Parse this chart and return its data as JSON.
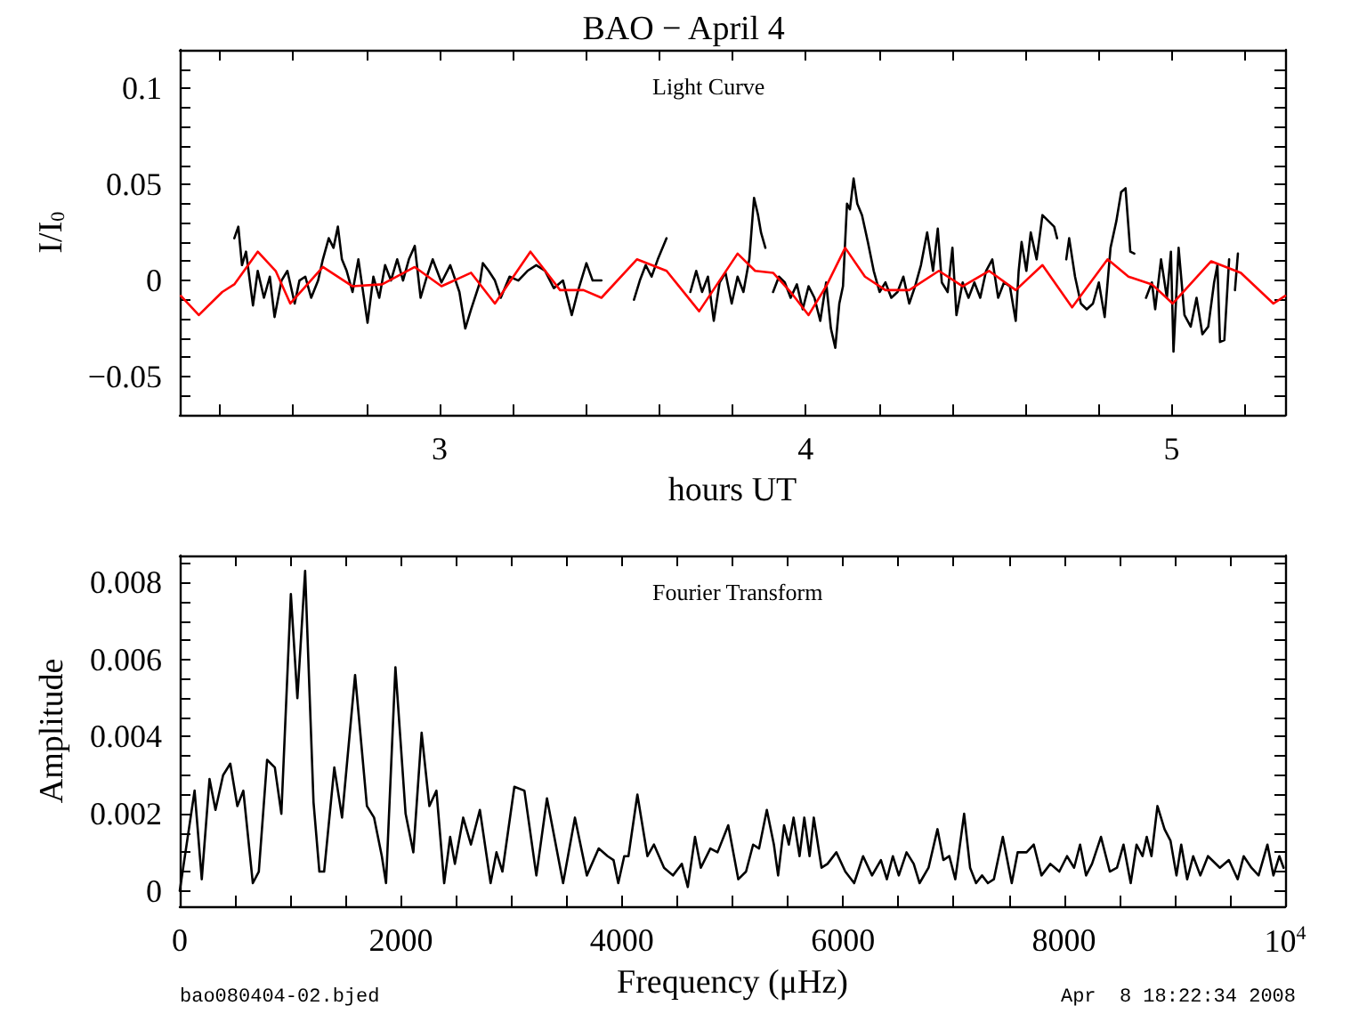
{
  "chart_data": [
    {
      "type": "line",
      "title": "BAO − April 4",
      "xlabel": "hours UT",
      "ylabel": "I/I$_{0}$",
      "annotations": [
        "Light Curve"
      ],
      "marker": "none",
      "line_style": "solid",
      "grid": false,
      "xlim": [
        2.29,
        5.31
      ],
      "ylim": [
        -0.07,
        0.12
      ],
      "xticks": [
        {
          "value": 2.4,
          "label": null
        },
        {
          "value": 2.6,
          "label": null
        },
        {
          "value": 2.8,
          "label": null
        },
        3,
        {
          "value": 3.2,
          "label": null
        },
        {
          "value": 3.4,
          "label": null
        },
        {
          "value": 3.6,
          "label": null
        },
        {
          "value": 3.8,
          "label": null
        },
        4,
        {
          "value": 4.2,
          "label": null
        },
        {
          "value": 4.4,
          "label": null
        },
        {
          "value": 4.6,
          "label": null
        },
        {
          "value": 4.8,
          "label": null
        },
        5,
        {
          "value": 5.2,
          "label": null
        }
      ],
      "yticks": [
        {
          "value": -0.06,
          "label": null
        },
        {
          "value": -0.05,
          "label": "−0.05"
        },
        {
          "value": -0.04,
          "label": null
        },
        {
          "value": -0.03,
          "label": null
        },
        {
          "value": -0.02,
          "label": null
        },
        {
          "value": -0.01,
          "label": null
        },
        0,
        {
          "value": 0.01,
          "label": null
        },
        {
          "value": 0.02,
          "label": null
        },
        {
          "value": 0.03,
          "label": null
        },
        {
          "value": 0.04,
          "label": null
        },
        0.05,
        {
          "value": 0.06,
          "label": null
        },
        {
          "value": 0.07,
          "label": null
        },
        {
          "value": 0.08,
          "label": null
        },
        {
          "value": 0.09,
          "label": null
        },
        0.1,
        {
          "value": 0.11,
          "label": null
        }
      ],
      "series": [
        {
          "color": "#000000",
          "x": [
            2.439,
            2.45,
            2.46,
            2.471,
            2.49,
            2.503,
            2.52,
            2.536,
            2.549,
            2.568,
            2.584,
            2.604,
            2.617,
            2.633,
            2.649,
            2.668,
            2.681,
            2.697,
            2.71,
            2.722,
            2.733,
            2.746,
            2.762,
            2.778,
            2.803,
            2.819,
            2.835,
            2.851,
            2.867,
            2.884,
            2.9,
            2.916,
            2.932,
            2.948,
            2.965,
            2.981,
            3.005,
            3.029,
            3.054,
            3.07,
            3.086,
            3.11,
            3.118,
            3.134,
            3.151,
            3.167,
            3.191,
            3.215,
            3.24,
            3.264,
            3.288,
            3.312,
            3.337,
            3.361,
            3.377,
            3.401,
            3.418,
            3.442,
            3.49,
            3.531,
            3.547,
            3.563,
            3.579,
            3.596,
            3.62,
            3.65,
            3.685,
            3.701,
            3.717,
            3.733,
            3.749,
            3.765,
            3.781,
            3.798,
            3.814,
            3.83,
            3.846,
            3.859,
            3.87,
            3.878,
            3.89,
            3.9,
            3.911,
            3.927,
            3.943,
            3.959,
            3.976,
            3.992,
            4.008,
            4.024,
            4.04,
            4.056,
            4.069,
            4.081,
            4.092,
            4.102,
            4.113,
            4.121,
            4.131,
            4.141,
            4.154,
            4.17,
            4.186,
            4.202,
            4.218,
            4.234,
            4.251,
            4.267,
            4.283,
            4.299,
            4.315,
            4.332,
            4.348,
            4.361,
            4.372,
            4.388,
            4.401,
            4.412,
            4.429,
            4.445,
            4.461,
            4.477,
            4.493,
            4.51,
            4.526,
            4.542,
            4.558,
            4.574,
            4.582,
            4.59,
            4.603,
            4.615,
            4.631,
            4.647,
            4.663,
            4.679,
            4.687,
            4.7,
            4.712,
            4.72,
            4.736,
            4.752,
            4.768,
            4.785,
            4.801,
            4.817,
            4.833,
            4.849,
            4.862,
            4.874,
            4.887,
            4.898,
            4.915,
            4.93,
            4.946,
            4.955,
            4.971,
            4.987,
            4.998,
            5.005,
            5.019,
            5.035,
            5.052,
            5.068,
            5.084,
            5.1,
            5.116,
            5.125,
            5.132,
            5.144,
            5.157,
            5.165,
            5.173,
            5.181
          ],
          "values": [
            0.022,
            0.028,
            0.008,
            0.015,
            -0.013,
            0.005,
            -0.009,
            0.002,
            -0.019,
            0.0,
            0.005,
            -0.012,
            0.0,
            0.002,
            -0.009,
            0.0,
            0.011,
            0.022,
            0.017,
            0.028,
            0.011,
            0.005,
            -0.006,
            0.011,
            -0.022,
            0.002,
            -0.009,
            0.008,
            0.0,
            0.011,
            0.0,
            0.011,
            0.018,
            -0.009,
            0.002,
            0.011,
            -0.001,
            0.008,
            -0.006,
            -0.025,
            -0.015,
            -0.001,
            0.009,
            0.005,
            0.0,
            -0.009,
            0.002,
            0.0,
            0.005,
            0.008,
            0.005,
            -0.004,
            0.0,
            -0.018,
            -0.006,
            0.009,
            0.0,
            0.0,
            null,
            -0.01,
            0.0,
            0.008,
            0.002,
            0.011,
            0.022,
            null,
            -0.006,
            0.005,
            -0.006,
            0.002,
            -0.021,
            -0.001,
            0.004,
            -0.012,
            0.002,
            -0.006,
            0.011,
            0.043,
            0.034,
            0.025,
            0.017,
            null,
            -0.006,
            0.002,
            -0.001,
            -0.009,
            -0.002,
            -0.015,
            -0.003,
            -0.009,
            -0.021,
            -0.001,
            -0.025,
            -0.035,
            -0.012,
            -0.003,
            0.04,
            0.037,
            0.053,
            0.04,
            0.034,
            0.02,
            0.005,
            -0.006,
            -0.001,
            -0.009,
            -0.006,
            0.002,
            -0.012,
            -0.003,
            0.008,
            0.025,
            0.005,
            0.027,
            -0.001,
            -0.006,
            0.017,
            -0.018,
            -0.001,
            -0.009,
            -0.001,
            -0.009,
            0.005,
            0.011,
            -0.009,
            -0.001,
            -0.003,
            -0.021,
            0.005,
            0.02,
            0.005,
            0.025,
            0.011,
            0.034,
            0.031,
            0.028,
            0.022,
            null,
            0.011,
            0.022,
            0.002,
            -0.012,
            -0.015,
            -0.012,
            -0.001,
            -0.019,
            0.017,
            0.031,
            0.046,
            0.048,
            0.015,
            0.014,
            null,
            -0.009,
            -0.001,
            -0.015,
            0.011,
            -0.009,
            0.015,
            -0.037,
            0.017,
            -0.018,
            -0.024,
            -0.009,
            -0.028,
            -0.024,
            -0.001,
            0.008,
            -0.032,
            -0.031,
            0.011,
            null,
            -0.005,
            0.014
          ]
        },
        {
          "color": "#ff0000",
          "x": [
            2.293,
            2.342,
            2.406,
            2.439,
            2.503,
            2.552,
            2.592,
            2.681,
            2.762,
            2.843,
            2.932,
            3.005,
            3.086,
            3.151,
            3.248,
            3.329,
            3.393,
            3.442,
            3.539,
            3.62,
            3.709,
            3.814,
            3.862,
            3.911,
            3.959,
            4.008,
            4.056,
            4.108,
            4.162,
            4.218,
            4.283,
            4.364,
            4.429,
            4.501,
            4.574,
            4.647,
            4.728,
            4.825,
            4.882,
            4.946,
            5.003,
            5.108,
            5.189,
            5.278,
            5.31
          ],
          "values": [
            -0.008,
            -0.018,
            -0.006,
            -0.002,
            0.015,
            0.005,
            -0.012,
            0.007,
            -0.003,
            -0.002,
            0.007,
            -0.003,
            0.004,
            -0.012,
            0.015,
            -0.005,
            -0.005,
            -0.009,
            0.011,
            0.005,
            -0.016,
            0.014,
            0.005,
            0.004,
            -0.006,
            -0.018,
            -0.003,
            0.017,
            0.002,
            -0.005,
            -0.005,
            0.005,
            -0.003,
            0.005,
            -0.005,
            0.008,
            -0.014,
            0.011,
            0.002,
            -0.002,
            -0.012,
            0.01,
            0.004,
            -0.012,
            -0.008
          ]
        }
      ]
    },
    {
      "type": "line",
      "xlabel": "Frequency (μHz)",
      "ylabel": "Amplitude",
      "annotations": [
        "Fourier Transform",
        "bao080404-02.bjed",
        "Apr  8 18:22:34 2008"
      ],
      "marker": "none",
      "line_style": "solid",
      "grid": false,
      "xlim": [
        0,
        10000
      ],
      "ylim": [
        -0.0004,
        0.0087
      ],
      "xticks": [
        0,
        {
          "value": 500,
          "label": null
        },
        {
          "value": 1000,
          "label": null
        },
        {
          "value": 1500,
          "label": null
        },
        2000,
        {
          "value": 2500,
          "label": null
        },
        {
          "value": 3000,
          "label": null
        },
        {
          "value": 3500,
          "label": null
        },
        4000,
        {
          "value": 4500,
          "label": null
        },
        {
          "value": 5000,
          "label": null
        },
        {
          "value": 5500,
          "label": null
        },
        6000,
        {
          "value": 6500,
          "label": null
        },
        {
          "value": 7000,
          "label": null
        },
        {
          "value": 7500,
          "label": null
        },
        8000,
        {
          "value": 8500,
          "label": null
        },
        {
          "value": 9000,
          "label": null
        },
        {
          "value": 9500,
          "label": null
        },
        {
          "value": 10000,
          "label": "10$^{4}$"
        }
      ],
      "yticks": [
        0,
        {
          "value": 0.0005,
          "label": null
        },
        {
          "value": 0.001,
          "label": null
        },
        {
          "value": 0.0015,
          "label": null
        },
        0.002,
        {
          "value": 0.0025,
          "label": null
        },
        {
          "value": 0.003,
          "label": null
        },
        {
          "value": 0.0035,
          "label": null
        },
        0.004,
        {
          "value": 0.0045,
          "label": null
        },
        {
          "value": 0.005,
          "label": null
        },
        {
          "value": 0.0055,
          "label": null
        },
        0.006,
        {
          "value": 0.0065,
          "label": null
        },
        {
          "value": 0.007,
          "label": null
        },
        {
          "value": 0.0075,
          "label": null
        },
        0.008,
        {
          "value": 0.0085,
          "label": null
        }
      ],
      "x": [
        0,
        134,
        199,
        269,
        323,
        392,
        457,
        521,
        575,
        661,
        715,
        790,
        860,
        919,
        1005,
        1064,
        1134,
        1210,
        1263,
        1306,
        1398,
        1468,
        1586,
        1693,
        1758,
        1828,
        1866,
        1951,
        2043,
        2113,
        2188,
        2258,
        2322,
        2392,
        2446,
        2489,
        2564,
        2634,
        2715,
        2812,
        2865,
        2919,
        3027,
        3118,
        3226,
        3322,
        3468,
        3575,
        3683,
        3790,
        3871,
        3924,
        3967,
        4021,
        4059,
        4140,
        4231,
        4290,
        4381,
        4462,
        4542,
        4596,
        4661,
        4714,
        4800,
        4865,
        4962,
        5053,
        5123,
        5187,
        5241,
        5311,
        5375,
        5413,
        5467,
        5510,
        5553,
        5607,
        5650,
        5698,
        5736,
        5806,
        5860,
        5940,
        6021,
        6101,
        6182,
        6263,
        6343,
        6397,
        6451,
        6505,
        6575,
        6640,
        6693,
        6774,
        6855,
        6908,
        6962,
        7016,
        7096,
        7150,
        7204,
        7258,
        7311,
        7365,
        7446,
        7527,
        7580,
        7661,
        7726,
        7796,
        7876,
        7957,
        8027,
        8091,
        8145,
        8199,
        8253,
        8334,
        8414,
        8479,
        8538,
        8603,
        8656,
        8710,
        8748,
        8791,
        8845,
        8909,
        8963,
        9017,
        9060,
        9114,
        9168,
        9233,
        9302,
        9410,
        9491,
        9571,
        9625,
        9695,
        9760,
        9840,
        9894,
        9948,
        9986
      ],
      "series": [
        {
          "color": "#000000",
          "values": [
            0,
            0.0026,
            0.0003,
            0.0029,
            0.0021,
            0.003,
            0.0033,
            0.0022,
            0.0026,
            0.0002,
            0.0005,
            0.0034,
            0.0032,
            0.002,
            0.0077,
            0.005,
            0.0083,
            0.0023,
            0.0005,
            0.0005,
            0.0032,
            0.0019,
            0.0056,
            0.0022,
            0.0019,
            0.0009,
            0.0002,
            0.0058,
            0.002,
            0.001,
            0.0041,
            0.0022,
            0.0026,
            0.0002,
            0.0014,
            0.0007,
            0.0019,
            0.0012,
            0.0021,
            0.0002,
            0.001,
            0.0005,
            0.0027,
            0.0026,
            0.0004,
            0.0024,
            0.0002,
            0.0019,
            0.0004,
            0.0011,
            0.0009,
            0.0008,
            0.0002,
            0.0009,
            0.0009,
            0.0025,
            0.0009,
            0.0012,
            0.0006,
            0.0004,
            0.0007,
            0.0001,
            0.0014,
            0.0006,
            0.0011,
            0.001,
            0.0017,
            0.0003,
            0.0005,
            0.0012,
            0.0011,
            0.0021,
            0.0012,
            0.0004,
            0.0017,
            0.0012,
            0.0019,
            0.0009,
            0.0019,
            0.0009,
            0.0019,
            0.0006,
            0.0007,
            0.001,
            0.0005,
            0.0002,
            0.0009,
            0.0004,
            0.0008,
            0.0003,
            0.0009,
            0.0004,
            0.001,
            0.0007,
            0.0002,
            0.0006,
            0.0016,
            0.0008,
            0.0009,
            0.0003,
            0.002,
            0.0006,
            0.0002,
            0.0004,
            0.0002,
            0.0003,
            0.0014,
            0.0002,
            0.001,
            0.001,
            0.0012,
            0.0004,
            0.0007,
            0.0005,
            0.0009,
            0.0006,
            0.0012,
            0.0004,
            0.0007,
            0.0014,
            0.0005,
            0.0006,
            0.0012,
            0.0002,
            0.0012,
            0.0009,
            0.0014,
            0.0009,
            0.0022,
            0.0016,
            0.0013,
            0.0004,
            0.0012,
            0.0003,
            0.0009,
            0.0004,
            0.0009,
            0.0006,
            0.0008,
            0.0003,
            0.0009,
            0.0006,
            0.0004,
            0.0012,
            0.0004,
            0.0009,
            0.0006
          ]
        }
      ]
    }
  ]
}
